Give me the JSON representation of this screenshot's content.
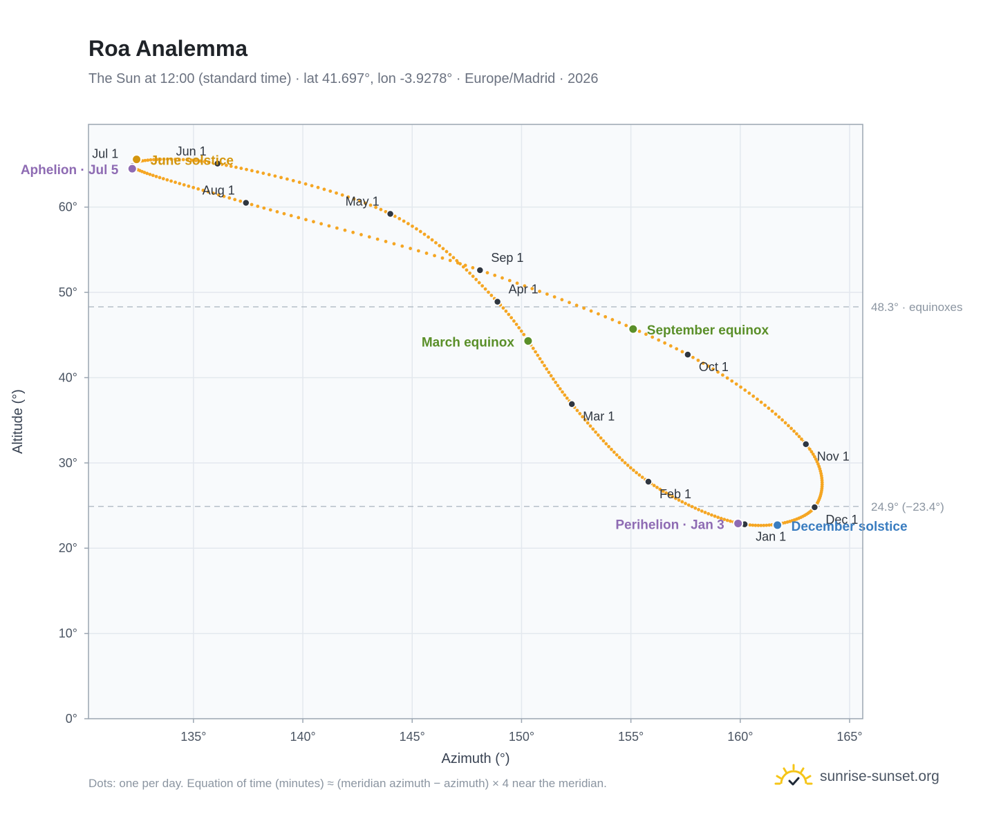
{
  "header": {
    "title": "Roa Analemma",
    "subtitle": "The Sun at 12:00 (standard time) · lat 41.697°, lon -3.9278° · Europe/Madrid · 2026"
  },
  "footer": {
    "note": "Dots: one per day. Equation of time (minutes) ≈ (meridian azimuth − azimuth) × 4 near the meridian.",
    "brand": "sunrise-sunset.org",
    "brand_icon": "sun-logo-icon"
  },
  "colors": {
    "curve": "#f5a623",
    "month_dot": "#2f3640",
    "solstice_june": "#d4960f",
    "equinox": "#5a8f29",
    "solstice_december": "#3a7dc0",
    "apsis": "#8e6bb3",
    "plot_bg": "#f8fafc",
    "grid": "#e3e8ee",
    "ref_line": "#b6bfc8"
  },
  "chart_data": {
    "type": "scatter",
    "xlabel": "Azimuth (°)",
    "ylabel": "Altitude (°)",
    "xlim": [
      130.2,
      165.6
    ],
    "ylim": [
      0,
      69.7
    ],
    "xticks": [
      135,
      140,
      145,
      150,
      155,
      160,
      165
    ],
    "xtick_labels": [
      "135°",
      "140°",
      "145°",
      "150°",
      "155°",
      "160°",
      "165°"
    ],
    "yticks": [
      0,
      10,
      20,
      30,
      40,
      50,
      60
    ],
    "ytick_labels": [
      "0°",
      "10°",
      "20°",
      "30°",
      "40°",
      "50°",
      "60°"
    ],
    "grid": true,
    "reference_lines": [
      {
        "y": 48.3,
        "label": "48.3° · equinoxes"
      },
      {
        "y": 24.9,
        "label": "24.9° (−23.4°)"
      }
    ],
    "month_points": [
      {
        "label": "Jan 1",
        "x": 160.2,
        "y": 22.8
      },
      {
        "label": "Feb 1",
        "x": 155.8,
        "y": 27.8
      },
      {
        "label": "Mar 1",
        "x": 152.3,
        "y": 36.9
      },
      {
        "label": "Apr 1",
        "x": 148.9,
        "y": 48.9
      },
      {
        "label": "May 1",
        "x": 144.0,
        "y": 59.2
      },
      {
        "label": "Jun 1",
        "x": 136.1,
        "y": 65.1
      },
      {
        "label": "Jul 1",
        "x": 132.2,
        "y": 64.8
      },
      {
        "label": "Aug 1",
        "x": 137.4,
        "y": 60.5
      },
      {
        "label": "Sep 1",
        "x": 148.1,
        "y": 52.6
      },
      {
        "label": "Oct 1",
        "x": 157.6,
        "y": 42.7
      },
      {
        "label": "Nov 1",
        "x": 163.0,
        "y": 32.2
      },
      {
        "label": "Dec 1",
        "x": 163.4,
        "y": 24.8
      }
    ],
    "events": [
      {
        "label": "June solstice",
        "x": 132.4,
        "y": 65.6,
        "kind": "solstice_june"
      },
      {
        "label": "Aphelion · Jul 5",
        "x": 132.2,
        "y": 64.5,
        "kind": "apsis"
      },
      {
        "label": "March equinox",
        "x": 150.3,
        "y": 44.3,
        "kind": "equinox"
      },
      {
        "label": "September equinox",
        "x": 155.1,
        "y": 45.7,
        "kind": "equinox"
      },
      {
        "label": "Perihelion · Jan 3",
        "x": 159.9,
        "y": 22.9,
        "kind": "apsis"
      },
      {
        "label": "December solstice",
        "x": 161.7,
        "y": 22.7,
        "kind": "solstice_december"
      }
    ]
  }
}
